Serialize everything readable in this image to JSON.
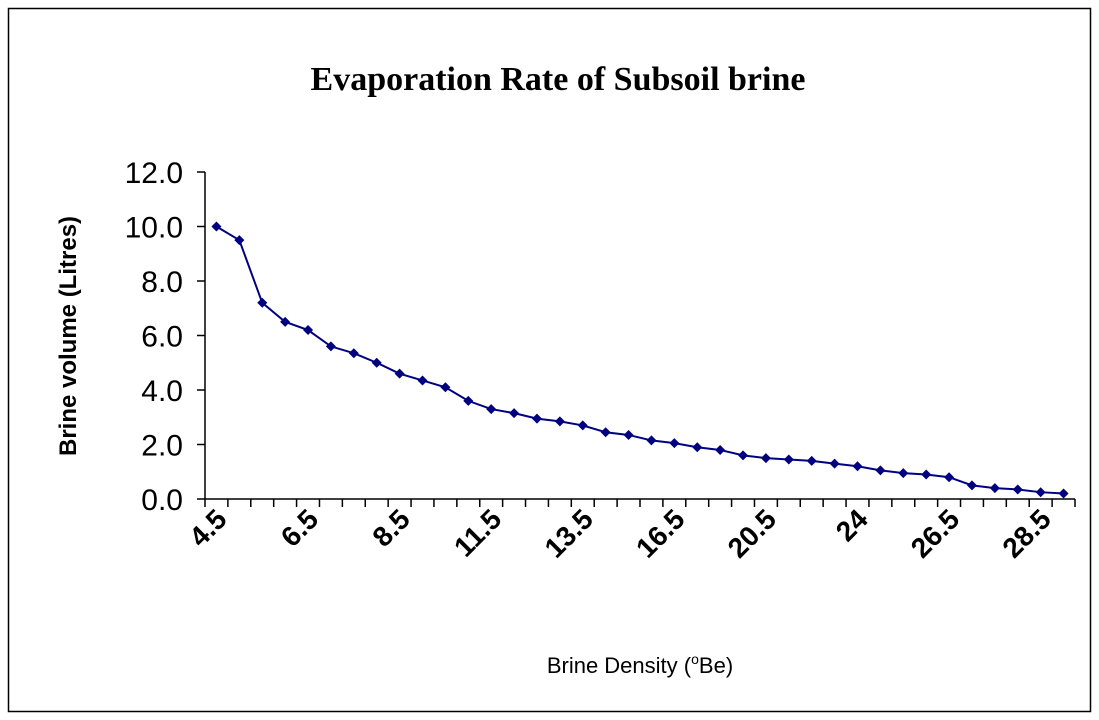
{
  "chart_data": {
    "type": "line",
    "title": "Evaporation Rate of Subsoil brine",
    "ylabel": "Brine volume (Litres)",
    "xlabel": [
      "Brine Density (",
      "o",
      "Be)"
    ],
    "categories": [
      "4.5",
      null,
      null,
      null,
      "6.5",
      null,
      null,
      null,
      "8.5",
      null,
      null,
      null,
      "11.5",
      null,
      null,
      null,
      "13.5",
      null,
      null,
      null,
      "16.5",
      null,
      null,
      null,
      "20.5",
      null,
      null,
      null,
      "24",
      null,
      null,
      null,
      "26.5",
      null,
      null,
      null,
      "28.5",
      null
    ],
    "series": [
      {
        "name": "Brine volume",
        "color": "#000080",
        "values": [
          10.0,
          9.5,
          7.2,
          6.5,
          6.2,
          5.6,
          5.35,
          5.0,
          4.6,
          4.35,
          4.1,
          3.6,
          3.3,
          3.15,
          2.95,
          2.85,
          2.7,
          2.45,
          2.35,
          2.15,
          2.05,
          1.9,
          1.8,
          1.6,
          1.5,
          1.45,
          1.4,
          1.3,
          1.2,
          1.05,
          0.95,
          0.9,
          0.8,
          0.5,
          0.4,
          0.35,
          0.25,
          0.2
        ]
      }
    ],
    "ylim": [
      0,
      12
    ],
    "yticks": [
      {
        "value": 0,
        "label": "0.0"
      },
      {
        "value": 2,
        "label": "2.0"
      },
      {
        "value": 4,
        "label": "4.0"
      },
      {
        "value": 6,
        "label": "6.0"
      },
      {
        "value": 8,
        "label": "8.0"
      },
      {
        "value": 10,
        "label": "10.0"
      },
      {
        "value": 12,
        "label": "12.0"
      }
    ],
    "grid": false
  }
}
